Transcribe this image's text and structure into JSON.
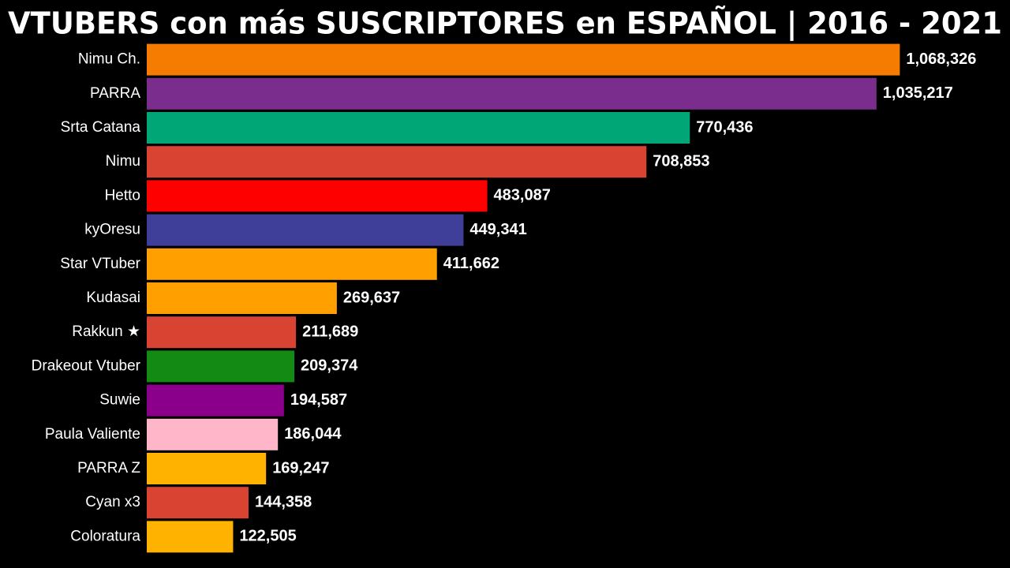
{
  "chart_data": {
    "type": "bar",
    "orientation": "horizontal",
    "title": "VTUBERS con más SUSCRIPTORES en ESPAÑOL | 2016 - 2021",
    "categories": [
      "Nimu Ch.",
      "PARRA",
      "Srta Catana",
      "Nimu",
      "Hetto",
      "kyOresu",
      "Star VTuber",
      "Kudasai",
      "Rakkun ★",
      "Drakeout Vtuber",
      "Suwie",
      "Paula Valiente",
      "PARRA Z",
      "Cyan x3",
      "Coloratura"
    ],
    "values": [
      1068326,
      1035217,
      770436,
      708853,
      483087,
      449341,
      411662,
      269637,
      211689,
      209374,
      194587,
      186044,
      169247,
      144358,
      122505
    ],
    "value_labels": [
      "1,068,326",
      "1,035,217",
      "770,436",
      "708,853",
      "483,087",
      "449,341",
      "411,662",
      "269,637",
      "211,689",
      "209,374",
      "194,587",
      "186,044",
      "169,247",
      "144,358",
      "122,505"
    ],
    "colors": [
      "#f57c00",
      "#7b2d8e",
      "#00a676",
      "#d84332",
      "#ff0000",
      "#3f3f9a",
      "#ff9f00",
      "#ff9f00",
      "#d84332",
      "#138a13",
      "#8b008b",
      "#ffb6c8",
      "#ffb300",
      "#d84332",
      "#ffb300"
    ],
    "xlim": [
      0,
      1200000
    ]
  }
}
